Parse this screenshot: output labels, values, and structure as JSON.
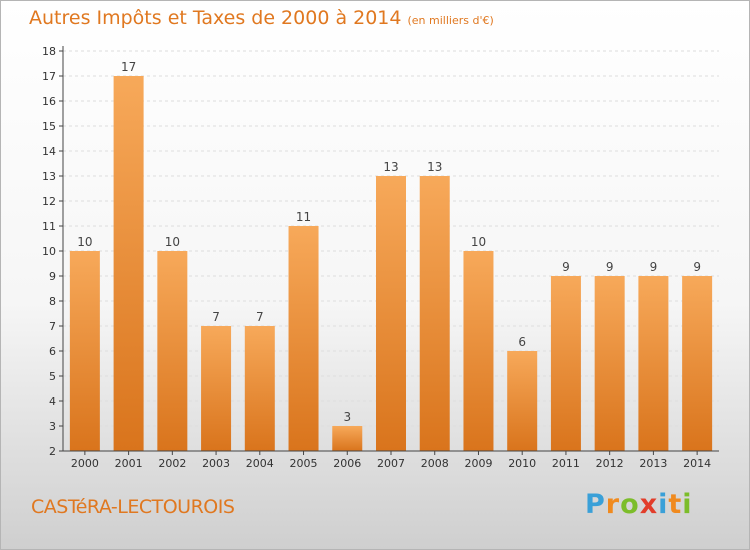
{
  "header": {
    "title": "Autres Impôts et Taxes de 2000 à 2014",
    "subtitle": "(en milliers d'€)"
  },
  "footer": {
    "commune": "CASTéRA-LECTOUROIS"
  },
  "logo": {
    "letters": [
      "P",
      "r",
      "o",
      "x",
      "i",
      "t",
      "i"
    ],
    "colors": [
      "#3aa0d8",
      "#f08a1e",
      "#7cbd2a",
      "#e23d2a",
      "#3aa0d8",
      "#f08a1e",
      "#7cbd2a"
    ]
  },
  "colors": {
    "bar_light": "#f7a95a",
    "bar_dark": "#d9741c",
    "title": "#e07820",
    "grid": "#dddddd",
    "axis": "#444444"
  },
  "chart_data": {
    "type": "bar",
    "categories": [
      "2000",
      "2001",
      "2002",
      "2003",
      "2004",
      "2005",
      "2006",
      "2007",
      "2008",
      "2009",
      "2010",
      "2011",
      "2012",
      "2013",
      "2014"
    ],
    "values": [
      10,
      17,
      10,
      7,
      7,
      11,
      3,
      13,
      13,
      10,
      6,
      9,
      9,
      9,
      9
    ],
    "value_labels": [
      "10",
      "17",
      "10",
      "7",
      "7",
      "11",
      "3",
      "13",
      "13",
      "10",
      "6",
      "9",
      "9",
      "9",
      "9"
    ],
    "ylim": [
      2,
      18
    ],
    "yticks": [
      "2",
      "3",
      "4",
      "5",
      "6",
      "7",
      "8",
      "9",
      "10",
      "11",
      "12",
      "13",
      "14",
      "15",
      "16",
      "17",
      "18"
    ],
    "grid": true,
    "legend": "none"
  }
}
